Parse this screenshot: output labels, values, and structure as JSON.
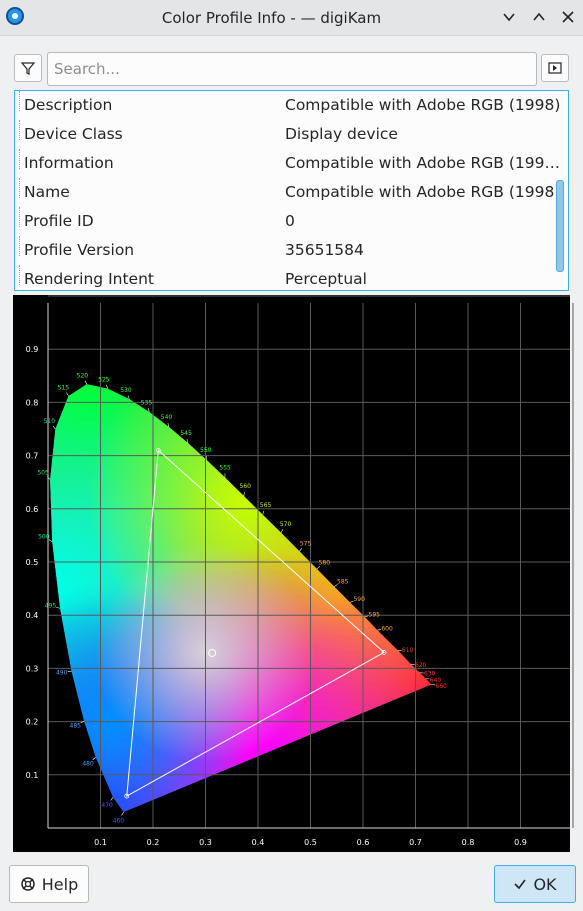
{
  "window": {
    "title": "Color Profile Info - — digiKam",
    "icon": "digikam-app-icon",
    "controls": [
      "chevron-down-icon",
      "chevron-up-icon",
      "close-icon"
    ]
  },
  "toolbar": {
    "filter_icon": "filter-icon",
    "search_placeholder": "Search...",
    "search_value": "",
    "side_icon": "panel-icon"
  },
  "properties": [
    {
      "key": "Description",
      "value": "Compatible with Adobe RGB (1998)"
    },
    {
      "key": "Device Class",
      "value": "Display device"
    },
    {
      "key": "Information",
      "value": "Compatible with Adobe RGB (199…"
    },
    {
      "key": "Name",
      "value": "Compatible with Adobe RGB (1998)"
    },
    {
      "key": "Profile ID",
      "value": "0"
    },
    {
      "key": "Profile Version",
      "value": "35651584"
    },
    {
      "key": "Rendering Intent",
      "value": "Perceptual"
    }
  ],
  "chart_data": {
    "type": "scatter",
    "title": "",
    "xlabel": "",
    "ylabel": "",
    "xlim": [
      0,
      1
    ],
    "ylim": [
      0,
      1
    ],
    "x_ticks": [
      "0.1",
      "0.2",
      "0.3",
      "0.4",
      "0.5",
      "0.6",
      "0.7",
      "0.8",
      "0.9"
    ],
    "y_ticks": [
      "0.1",
      "0.2",
      "0.3",
      "0.4",
      "0.5",
      "0.6",
      "0.7",
      "0.8",
      "0.9"
    ],
    "grid": true,
    "locus_labels": [
      {
        "label": "460",
        "x": 0.144,
        "y": 0.03
      },
      {
        "label": "470",
        "x": 0.124,
        "y": 0.058
      },
      {
        "label": "480",
        "x": 0.091,
        "y": 0.133
      },
      {
        "label": "485",
        "x": 0.069,
        "y": 0.201
      },
      {
        "label": "490",
        "x": 0.045,
        "y": 0.295
      },
      {
        "label": "495",
        "x": 0.023,
        "y": 0.413
      },
      {
        "label": "500",
        "x": 0.008,
        "y": 0.538
      },
      {
        "label": "505",
        "x": 0.004,
        "y": 0.655
      },
      {
        "label": "510",
        "x": 0.014,
        "y": 0.75
      },
      {
        "label": "515",
        "x": 0.039,
        "y": 0.812
      },
      {
        "label": "520",
        "x": 0.074,
        "y": 0.834
      },
      {
        "label": "525",
        "x": 0.114,
        "y": 0.826
      },
      {
        "label": "530",
        "x": 0.155,
        "y": 0.806
      },
      {
        "label": "535",
        "x": 0.193,
        "y": 0.782
      },
      {
        "label": "540",
        "x": 0.23,
        "y": 0.754
      },
      {
        "label": "545",
        "x": 0.266,
        "y": 0.724
      },
      {
        "label": "550",
        "x": 0.302,
        "y": 0.692
      },
      {
        "label": "555",
        "x": 0.337,
        "y": 0.659
      },
      {
        "label": "560",
        "x": 0.373,
        "y": 0.624
      },
      {
        "label": "565",
        "x": 0.409,
        "y": 0.589
      },
      {
        "label": "570",
        "x": 0.444,
        "y": 0.555
      },
      {
        "label": "575",
        "x": 0.479,
        "y": 0.52
      },
      {
        "label": "580",
        "x": 0.512,
        "y": 0.487
      },
      {
        "label": "585",
        "x": 0.545,
        "y": 0.454
      },
      {
        "label": "590",
        "x": 0.575,
        "y": 0.424
      },
      {
        "label": "595",
        "x": 0.603,
        "y": 0.397
      },
      {
        "label": "600",
        "x": 0.627,
        "y": 0.372
      },
      {
        "label": "610",
        "x": 0.666,
        "y": 0.334
      },
      {
        "label": "620",
        "x": 0.691,
        "y": 0.308
      },
      {
        "label": "630",
        "x": 0.708,
        "y": 0.292
      },
      {
        "label": "640",
        "x": 0.719,
        "y": 0.281
      },
      {
        "label": "660",
        "x": 0.73,
        "y": 0.27
      }
    ],
    "gamut": {
      "name": "Adobe RGB (1998)",
      "points": [
        {
          "x": 0.64,
          "y": 0.33
        },
        {
          "x": 0.21,
          "y": 0.71
        },
        {
          "x": 0.15,
          "y": 0.06
        }
      ]
    },
    "white_point": {
      "x": 0.3127,
      "y": 0.329
    },
    "colors": {
      "background": "#000000",
      "grid": "#5a5a5a",
      "gamut_line": "#ffffff"
    }
  },
  "footer": {
    "help_label": "Help",
    "help_icon": "help-lifebuoy-icon",
    "ok_label": "OK",
    "ok_icon": "checkmark-icon"
  }
}
